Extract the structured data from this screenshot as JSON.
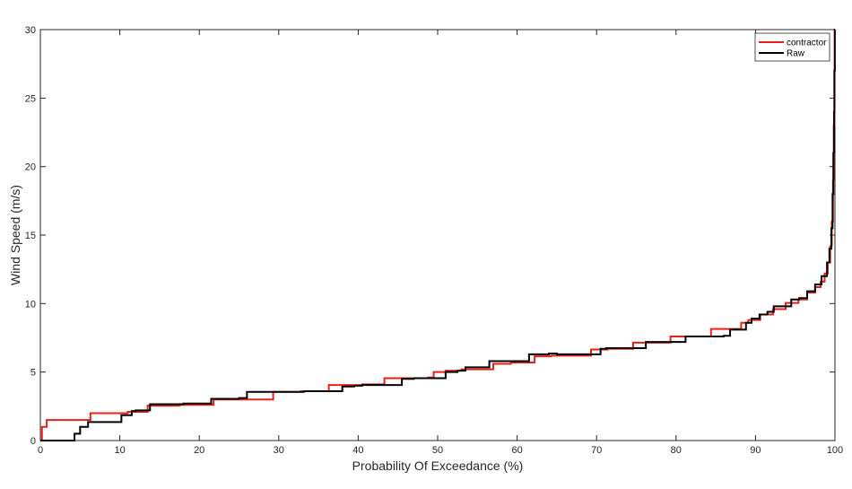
{
  "chart_data": {
    "type": "line",
    "title": "",
    "xlabel": "Probability Of Exceedance  (%)",
    "ylabel": "Wind Speed (m/s)",
    "xlim": [
      0,
      100
    ],
    "ylim": [
      0,
      30
    ],
    "xticks": [
      0,
      10,
      20,
      30,
      40,
      50,
      60,
      70,
      80,
      90,
      100
    ],
    "yticks": [
      0,
      5,
      10,
      15,
      20,
      25,
      30
    ],
    "grid": false,
    "legend_position": "top-right",
    "series": [
      {
        "name": "contractor",
        "color": "#e8201a",
        "step": true,
        "x": [
          0,
          0.2,
          0.8,
          6.3,
          11.0,
          13.5,
          17.5,
          21.8,
          29.3,
          32.8,
          36.3,
          40.5,
          43.3,
          48.8,
          49.5,
          51.0,
          53.0,
          57.0,
          59.2,
          62.2,
          64.3,
          69.3,
          71.4,
          74.6,
          79.3,
          84.4,
          88.2,
          89.1,
          90.6,
          92.2,
          93.8,
          95.4,
          96.5,
          97.5,
          98.2,
          98.7,
          99.1,
          99.4,
          99.6,
          99.75,
          99.85,
          99.92,
          99.97,
          100
        ],
        "y": [
          0,
          1.0,
          1.5,
          2.0,
          2.1,
          2.55,
          2.6,
          3.0,
          3.55,
          3.6,
          4.05,
          4.1,
          4.55,
          4.6,
          5.0,
          5.1,
          5.2,
          5.6,
          5.7,
          6.15,
          6.2,
          6.65,
          6.7,
          7.15,
          7.6,
          8.15,
          8.6,
          8.8,
          9.2,
          9.6,
          10.05,
          10.3,
          10.8,
          11.2,
          11.6,
          12.2,
          13.0,
          14.2,
          16.0,
          19.0,
          23.0,
          27.0,
          30.0,
          30.0
        ]
      },
      {
        "name": "Raw",
        "color": "#000000",
        "step": true,
        "x": [
          0,
          4.3,
          5.0,
          6.0,
          10.2,
          11.5,
          12.0,
          13.8,
          18.0,
          21.5,
          25.0,
          26.0,
          33.2,
          38.0,
          39.5,
          40.5,
          45.5,
          47.0,
          51.0,
          52.5,
          53.5,
          56.5,
          61.5,
          64.0,
          65.0,
          70.5,
          71.2,
          76.2,
          81.2,
          86.0,
          86.8,
          88.8,
          89.5,
          90.5,
          91.5,
          92.3,
          94.5,
          95.5,
          96.5,
          97.5,
          98.3,
          99.0,
          99.3,
          99.55,
          99.7,
          99.8,
          99.88,
          99.94,
          99.98,
          100
        ],
        "y": [
          0,
          0.5,
          1.0,
          1.35,
          1.85,
          2.15,
          2.2,
          2.65,
          2.7,
          3.05,
          3.1,
          3.55,
          3.6,
          3.95,
          4.0,
          4.05,
          4.5,
          4.55,
          5.0,
          5.1,
          5.35,
          5.8,
          6.3,
          6.35,
          6.3,
          6.7,
          6.75,
          7.2,
          7.6,
          7.65,
          8.1,
          8.6,
          8.9,
          9.2,
          9.4,
          9.8,
          10.3,
          10.4,
          10.9,
          11.4,
          12.0,
          13.0,
          14.0,
          15.5,
          18.0,
          21.0,
          24.0,
          27.0,
          30.0,
          30.0
        ]
      }
    ]
  }
}
